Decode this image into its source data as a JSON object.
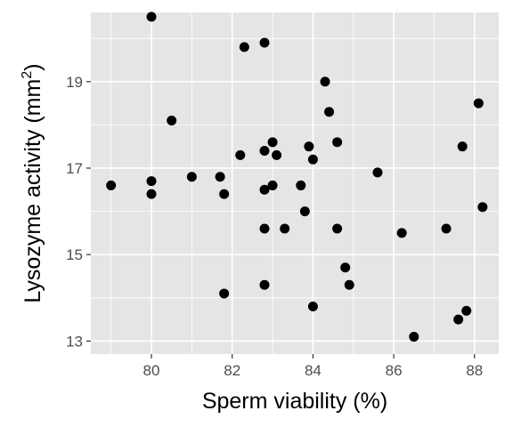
{
  "chart_data": {
    "type": "scatter",
    "title": "",
    "xlabel": "Sperm viability (%)",
    "ylabel_main": "Lysozyme activity (mm",
    "ylabel_sup": "2",
    "ylabel_close": ")",
    "xlim": [
      78.5,
      88.6
    ],
    "ylim": [
      12.7,
      20.6
    ],
    "x_ticks": [
      80,
      82,
      84,
      86,
      88
    ],
    "x_tick_labels": [
      "80",
      "82",
      "84",
      "86",
      "88"
    ],
    "y_ticks": [
      13,
      15,
      17,
      19
    ],
    "y_tick_labels": [
      "13",
      "15",
      "17",
      "19"
    ],
    "grid": true,
    "panel_color": "#e5e5e5",
    "grid_color": "#ffffff",
    "point_color": "#000000",
    "points": [
      {
        "x": 80.0,
        "y": 20.5
      },
      {
        "x": 82.3,
        "y": 19.8
      },
      {
        "x": 82.8,
        "y": 19.9
      },
      {
        "x": 84.3,
        "y": 19.0
      },
      {
        "x": 84.4,
        "y": 18.3
      },
      {
        "x": 88.1,
        "y": 18.5
      },
      {
        "x": 80.5,
        "y": 18.1
      },
      {
        "x": 83.0,
        "y": 17.6
      },
      {
        "x": 82.8,
        "y": 17.4
      },
      {
        "x": 83.1,
        "y": 17.3
      },
      {
        "x": 82.2,
        "y": 17.3
      },
      {
        "x": 83.9,
        "y": 17.5
      },
      {
        "x": 84.0,
        "y": 17.2
      },
      {
        "x": 84.6,
        "y": 17.6
      },
      {
        "x": 87.7,
        "y": 17.5
      },
      {
        "x": 85.6,
        "y": 16.9
      },
      {
        "x": 79.0,
        "y": 16.6
      },
      {
        "x": 80.0,
        "y": 16.7
      },
      {
        "x": 80.0,
        "y": 16.4
      },
      {
        "x": 81.0,
        "y": 16.8
      },
      {
        "x": 81.7,
        "y": 16.8
      },
      {
        "x": 81.8,
        "y": 16.4
      },
      {
        "x": 82.8,
        "y": 16.5
      },
      {
        "x": 83.0,
        "y": 16.6
      },
      {
        "x": 83.7,
        "y": 16.6
      },
      {
        "x": 83.8,
        "y": 16.0
      },
      {
        "x": 88.2,
        "y": 16.1
      },
      {
        "x": 82.8,
        "y": 15.6
      },
      {
        "x": 83.3,
        "y": 15.6
      },
      {
        "x": 84.6,
        "y": 15.6
      },
      {
        "x": 86.2,
        "y": 15.5
      },
      {
        "x": 87.3,
        "y": 15.6
      },
      {
        "x": 84.8,
        "y": 14.7
      },
      {
        "x": 84.9,
        "y": 14.3
      },
      {
        "x": 82.8,
        "y": 14.3
      },
      {
        "x": 81.8,
        "y": 14.1
      },
      {
        "x": 84.0,
        "y": 13.8
      },
      {
        "x": 87.8,
        "y": 13.7
      },
      {
        "x": 87.6,
        "y": 13.5
      },
      {
        "x": 86.5,
        "y": 13.1
      }
    ]
  }
}
